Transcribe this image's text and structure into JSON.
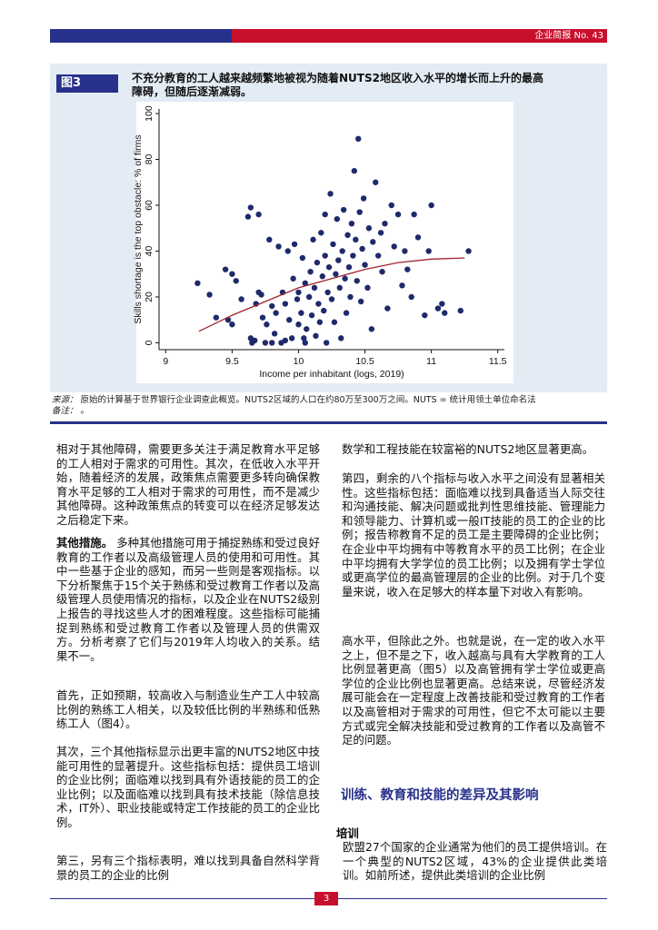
{
  "header": {
    "text": "企业简报 No. 43"
  },
  "figure": {
    "label": "图3",
    "source_label": "来源：",
    "source": "原始的计算基于世界银行企业调查此概览。NUTS2区域的人口在约80万至300万之间。NUTS = 统计用领土单位命名法",
    "note_label": "备注：",
    "note": "。"
  },
  "chart_data": {
    "type": "scatter",
    "title": "不充分教育的工人越来越频繁地被视为随着NUTS2地区收入水平的增长而上升的最高障碍，但随后逐渐减弱。",
    "xlabel": "Income per inhabitant (logs, 2019)",
    "ylabel": "Skills shortage is the top obstacle: % of firms",
    "xlim": [
      8.95,
      11.55
    ],
    "ylim": [
      -3,
      102
    ],
    "xticks": [
      9,
      9.5,
      10,
      10.5,
      11,
      11.5
    ],
    "yticks": [
      0,
      20,
      40,
      60,
      80,
      100
    ],
    "series": [
      {
        "type": "scatter",
        "color": "#1f2a6b",
        "x": [
          9.24,
          9.33,
          9.38,
          9.45,
          9.5,
          9.5,
          9.53,
          9.47,
          9.57,
          9.62,
          9.64,
          9.64,
          9.65,
          9.67,
          9.68,
          9.7,
          9.72,
          9.73,
          9.75,
          9.76,
          9.78,
          9.8,
          9.82,
          9.83,
          9.85,
          9.87,
          9.88,
          9.9,
          9.92,
          9.93,
          9.95,
          9.96,
          9.97,
          9.99,
          10.0,
          10.0,
          10.02,
          10.03,
          10.04,
          10.05,
          10.06,
          10.08,
          10.09,
          10.1,
          10.11,
          10.12,
          10.13,
          10.14,
          10.15,
          10.16,
          10.17,
          10.18,
          10.19,
          10.2,
          10.2,
          10.21,
          10.22,
          10.23,
          10.24,
          10.25,
          10.26,
          10.27,
          10.28,
          10.29,
          10.3,
          10.31,
          10.32,
          10.33,
          10.34,
          10.35,
          10.36,
          10.37,
          10.38,
          10.39,
          10.4,
          10.41,
          10.42,
          10.43,
          10.44,
          10.45,
          10.46,
          10.47,
          10.48,
          10.49,
          10.5,
          10.52,
          10.53,
          10.55,
          10.56,
          10.58,
          10.6,
          10.62,
          10.63,
          10.65,
          10.67,
          10.7,
          10.72,
          10.75,
          10.78,
          10.8,
          10.82,
          10.85,
          10.87,
          10.9,
          10.95,
          10.98,
          11.0,
          11.05,
          11.08,
          11.1,
          11.22,
          11.28,
          9.8,
          9.9,
          10.05,
          9.7
        ],
        "values": [
          26,
          21,
          11,
          32,
          8,
          30,
          27,
          10,
          19,
          55,
          59,
          2,
          0,
          1,
          17,
          22,
          21,
          11,
          0,
          8,
          45,
          16,
          4,
          13,
          42,
          0,
          22,
          17,
          40,
          10,
          2,
          28,
          43,
          19,
          8,
          22,
          13,
          37,
          2,
          26,
          6,
          20,
          31,
          12,
          45,
          24,
          3,
          35,
          17,
          9,
          48,
          29,
          14,
          56,
          38,
          0,
          22,
          33,
          65,
          19,
          43,
          9,
          30,
          54,
          36,
          24,
          2,
          40,
          58,
          28,
          13,
          47,
          33,
          20,
          52,
          38,
          75,
          45,
          27,
          89,
          57,
          18,
          41,
          63,
          34,
          24,
          50,
          6,
          44,
          70,
          38,
          48,
          31,
          52,
          15,
          60,
          42,
          56,
          25,
          40,
          32,
          20,
          56,
          46,
          12,
          40,
          60,
          15,
          17,
          13,
          14,
          40,
          0,
          1,
          0,
          56
        ]
      },
      {
        "type": "line",
        "color": "#a0222e",
        "x": [
          9.25,
          9.5,
          9.75,
          10,
          10.25,
          10.5,
          10.75,
          11,
          11.25
        ],
        "values": [
          5,
          12,
          18,
          24,
          28,
          32,
          35,
          36.5,
          37
        ]
      }
    ]
  },
  "left_column": [
    {
      "text": "相对于其他障碍，需要更多关注于满足教育水平足够的工人相对于需求的可用性。其次，在低收入水平开始，随着经济的发展，政策焦点需要更多转向确保教育水平足够的工人相对于需求的可用性，而不是减少其他障碍。这种政策焦点的转变可以在经济足够发达之后稳定下来。"
    },
    {
      "lead": "其他措施。",
      "text": "多种其他措施可用于捕捉熟练和受过良好教育的工作者以及高级管理人员的使用和可用性。其中一些基于企业的感知，而另一些则是客观指标。以下分析聚焦于15个关于熟练和受过教育工作者以及高级管理人员使用情况的指标，以及企业在NUTS2级别上报告的寻找这些人才的困难程度。这些指标可能捕捉到熟练和受过教育工作者以及管理人员的供需双方。分析考察了它们与2019年人均收入的关系。结果不一。"
    },
    {
      "text": "首先，正如预期，较高收入与制造业生产工人中较高比例的熟练工人相关，以及较低比例的半熟练和低熟练工人（图4）。"
    },
    {
      "text": "其次，三个其他指标显示出更丰富的NUTS2地区中技能可用性的显著提升。这些指标包括：提供员工培训的企业比例；面临难以找到具有外语技能的员工的企业比例；以及面临难以找到具有技术技能（除信息技术，IT外）、职业技能或特定工作技能的员工的企业比例。"
    },
    {
      "text": "第三，另有三个指标表明，难以找到具备自然科学背景的员工的企业的比例"
    }
  ],
  "right_column": [
    {
      "text": "数学和工程技能在较富裕的NUTS2地区显著更高。"
    },
    {
      "text": "第四，剩余的八个指标与收入水平之间没有显著相关性。这些指标包括：面临难以找到具备适当人际交往和沟通技能、解决问题或批判性思维技能、管理能力和领导能力、计算机或一般IT技能的员工的企业的比例；报告称教育不足的员工是主要障碍的企业比例；在企业中平均拥有中等教育水平的员工比例；在企业中平均拥有大学学位的员工比例；以及拥有学士学位或更高学位的最高管理层的企业的比例。对于几个变量来说，收入在足够大的样本量下对收入有影响。"
    },
    {
      "text": "高水平，但除此之外。也就是说，在一定的收入水平之上，但不是之下，收入越高与具有大学教育的工人比例显著更高（图5）以及高管拥有学士学位或更高学位的企业比例也显著更高。总结来说，尽管经济发展可能会在一定程度上改善技能和受过教育的工作者以及高管相对于需求的可用性，但它不太可能以主要方式或完全解决技能和受过教育的工作者以及高管不足的问题。"
    }
  ],
  "section": {
    "heading": "训练、教育和技能的差异及其影响",
    "subheading": "培训",
    "text": "欧盟27个国家的企业通常为他们的员工提供培训。在一个典型的NUTS2区域，43%的企业提供此类培训。如前所述，提供此类培训的企业比例"
  },
  "page_number": "3"
}
